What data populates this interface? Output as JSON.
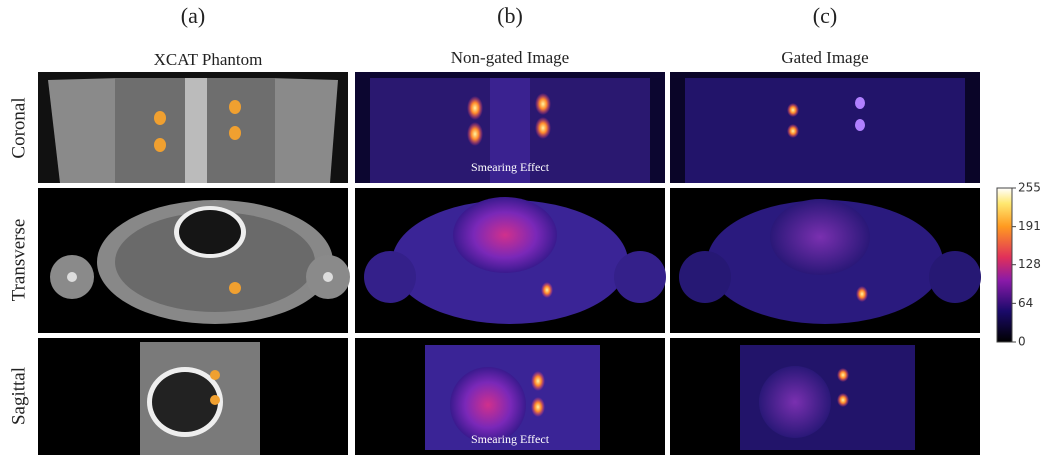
{
  "columns": [
    {
      "letter": "(a)",
      "title": "XCAT Phantom"
    },
    {
      "letter": "(b)",
      "title": "Non-gated Image"
    },
    {
      "letter": "(c)",
      "title": "Gated Image"
    }
  ],
  "rows": [
    "Coronal",
    "Transverse",
    "Sagittal"
  ],
  "annotations": [
    "Smearing Effect",
    "Smearing Effect"
  ],
  "colorbar": {
    "ticks": [
      0,
      64,
      128,
      191,
      255
    ]
  }
}
